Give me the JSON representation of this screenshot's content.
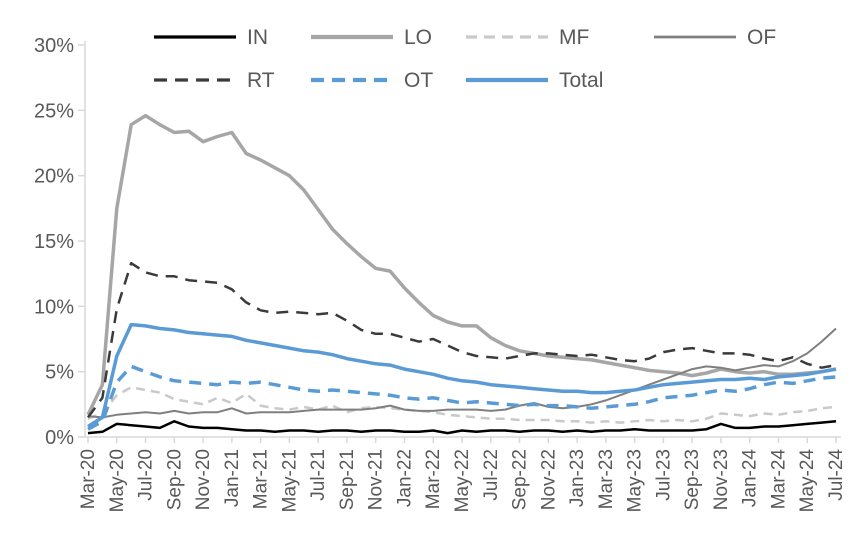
{
  "chart_data": {
    "type": "line",
    "title": "",
    "xlabel": "",
    "ylabel": "",
    "ylim": [
      0,
      30
    ],
    "grid": false,
    "legend_position": "top",
    "axis_color": "#D9D9D9",
    "label_color": "#595959",
    "y_ticks": [
      0,
      5,
      10,
      15,
      20,
      25,
      30
    ],
    "y_tick_labels": [
      "0%",
      "5%",
      "10%",
      "15%",
      "20%",
      "25%",
      "30%"
    ],
    "x_tick_every": 2,
    "x": [
      "Mar-20",
      "Apr-20",
      "May-20",
      "Jun-20",
      "Jul-20",
      "Aug-20",
      "Sep-20",
      "Oct-20",
      "Nov-20",
      "Dec-20",
      "Jan-21",
      "Feb-21",
      "Mar-21",
      "Apr-21",
      "May-21",
      "Jun-21",
      "Jul-21",
      "Aug-21",
      "Sep-21",
      "Oct-21",
      "Nov-21",
      "Dec-21",
      "Jan-22",
      "Feb-22",
      "Mar-22",
      "Apr-22",
      "May-22",
      "Jun-22",
      "Jul-22",
      "Aug-22",
      "Sep-22",
      "Oct-22",
      "Nov-22",
      "Dec-22",
      "Jan-23",
      "Feb-23",
      "Mar-23",
      "Apr-23",
      "May-23",
      "Jun-23",
      "Jul-23",
      "Aug-23",
      "Sep-23",
      "Oct-23",
      "Nov-23",
      "Dec-23",
      "Jan-24",
      "Feb-24",
      "Mar-24",
      "Apr-24",
      "May-24",
      "Jun-24",
      "Jul-24"
    ],
    "x_tick_labels_shown": [
      "Mar-20",
      "May-20",
      "Jul-20",
      "Sep-20",
      "Nov-20",
      "Jan-21",
      "Mar-21",
      "May-21",
      "Jul-21",
      "Sep-21",
      "Nov-21",
      "Jan-22",
      "Mar-22",
      "May-22",
      "Jul-22",
      "Sep-22",
      "Nov-22",
      "Jan-23",
      "Mar-23",
      "May-23",
      "Jul-23",
      "Sep-23",
      "Nov-23",
      "Jan-24",
      "Mar-24",
      "May-24",
      "Jul-24"
    ],
    "series": [
      {
        "name": "IN",
        "color": "#000000",
        "dash": "solid",
        "values": [
          0.3,
          0.4,
          1.0,
          0.9,
          0.8,
          0.7,
          1.2,
          0.8,
          0.7,
          0.7,
          0.6,
          0.5,
          0.5,
          0.4,
          0.5,
          0.5,
          0.4,
          0.5,
          0.5,
          0.4,
          0.5,
          0.5,
          0.4,
          0.4,
          0.5,
          0.3,
          0.5,
          0.4,
          0.5,
          0.5,
          0.4,
          0.5,
          0.5,
          0.4,
          0.5,
          0.4,
          0.5,
          0.5,
          0.6,
          0.5,
          0.5,
          0.5,
          0.5,
          0.6,
          1.0,
          0.7,
          0.7,
          0.8,
          0.8,
          0.9,
          1.0,
          1.1,
          1.2
        ]
      },
      {
        "name": "LO",
        "color": "#A6A6A6",
        "dash": "solid",
        "values": [
          1.7,
          4.0,
          17.5,
          23.9,
          24.6,
          23.9,
          23.3,
          23.4,
          22.6,
          23.0,
          23.3,
          21.7,
          21.2,
          20.6,
          20.0,
          18.9,
          17.4,
          15.9,
          14.8,
          13.8,
          12.9,
          12.7,
          11.4,
          10.3,
          9.3,
          8.8,
          8.5,
          8.5,
          7.6,
          7.0,
          6.6,
          6.4,
          6.2,
          6.1,
          6.0,
          5.9,
          5.7,
          5.5,
          5.3,
          5.1,
          5.0,
          4.9,
          4.7,
          4.9,
          5.2,
          5.0,
          4.9,
          5.0,
          4.8,
          4.8,
          4.9,
          5.0,
          5.2
        ]
      },
      {
        "name": "MF",
        "color": "#C9C9C9",
        "dash": "dashed",
        "values": [
          1.4,
          1.8,
          3.2,
          3.8,
          3.6,
          3.4,
          2.9,
          2.7,
          2.5,
          3.0,
          2.6,
          3.3,
          2.4,
          2.2,
          2.1,
          2.3,
          2.1,
          2.4,
          1.9,
          2.2,
          2.3,
          2.2,
          2.1,
          2.0,
          1.9,
          1.7,
          1.6,
          1.5,
          1.4,
          1.4,
          1.3,
          1.3,
          1.3,
          1.2,
          1.2,
          1.1,
          1.2,
          1.1,
          1.2,
          1.3,
          1.2,
          1.3,
          1.2,
          1.4,
          1.8,
          1.7,
          1.6,
          1.8,
          1.7,
          1.9,
          2.0,
          2.2,
          2.3
        ]
      },
      {
        "name": "OF",
        "color": "#7F7F7F",
        "dash": "solid",
        "values": [
          1.6,
          1.5,
          1.7,
          1.8,
          1.9,
          1.8,
          2.0,
          1.8,
          1.9,
          1.9,
          2.2,
          1.8,
          1.9,
          1.9,
          1.9,
          2.0,
          2.1,
          2.1,
          2.1,
          2.1,
          2.2,
          2.4,
          2.1,
          2.0,
          2.0,
          2.1,
          2.1,
          2.1,
          2.0,
          2.1,
          2.4,
          2.6,
          2.3,
          2.2,
          2.3,
          2.5,
          2.8,
          3.2,
          3.6,
          4.0,
          4.4,
          4.8,
          5.2,
          5.4,
          5.3,
          5.1,
          5.3,
          5.5,
          5.4,
          5.8,
          6.4,
          7.3,
          8.3
        ]
      },
      {
        "name": "RT",
        "color": "#3B3B3B",
        "dash": "dashed",
        "values": [
          1.5,
          3.0,
          9.8,
          13.3,
          12.6,
          12.3,
          12.3,
          12.0,
          11.9,
          11.8,
          11.3,
          10.3,
          9.7,
          9.5,
          9.6,
          9.5,
          9.4,
          9.5,
          8.9,
          8.2,
          7.9,
          7.9,
          7.6,
          7.3,
          7.5,
          7.0,
          6.5,
          6.2,
          6.1,
          6.0,
          6.2,
          6.4,
          6.4,
          6.3,
          6.2,
          6.3,
          6.1,
          5.9,
          5.8,
          6.0,
          6.5,
          6.7,
          6.8,
          6.6,
          6.4,
          6.4,
          6.3,
          6.0,
          5.8,
          6.1,
          5.6,
          5.3,
          5.5
        ]
      },
      {
        "name": "OT",
        "color": "#5B9BD5",
        "dash": "dashed",
        "values": [
          0.6,
          1.2,
          4.2,
          5.4,
          5.0,
          4.6,
          4.3,
          4.2,
          4.1,
          4.0,
          4.2,
          4.1,
          4.2,
          4.0,
          3.8,
          3.6,
          3.5,
          3.6,
          3.5,
          3.4,
          3.3,
          3.2,
          3.0,
          2.9,
          3.0,
          2.8,
          2.6,
          2.7,
          2.6,
          2.5,
          2.4,
          2.5,
          2.4,
          2.4,
          2.3,
          2.2,
          2.3,
          2.4,
          2.5,
          2.7,
          3.0,
          3.1,
          3.2,
          3.4,
          3.6,
          3.5,
          3.7,
          4.0,
          4.2,
          4.1,
          4.3,
          4.5,
          4.6
        ]
      },
      {
        "name": "Total",
        "color": "#5B9BD5",
        "dash": "solid",
        "values": [
          0.8,
          1.5,
          6.2,
          8.6,
          8.5,
          8.3,
          8.2,
          8.0,
          7.9,
          7.8,
          7.7,
          7.4,
          7.2,
          7.0,
          6.8,
          6.6,
          6.5,
          6.3,
          6.0,
          5.8,
          5.6,
          5.5,
          5.2,
          5.0,
          4.8,
          4.5,
          4.3,
          4.2,
          4.0,
          3.9,
          3.8,
          3.7,
          3.6,
          3.5,
          3.5,
          3.4,
          3.4,
          3.5,
          3.6,
          3.8,
          4.0,
          4.1,
          4.2,
          4.3,
          4.4,
          4.4,
          4.5,
          4.4,
          4.6,
          4.7,
          4.8,
          5.0,
          5.2
        ]
      }
    ]
  }
}
